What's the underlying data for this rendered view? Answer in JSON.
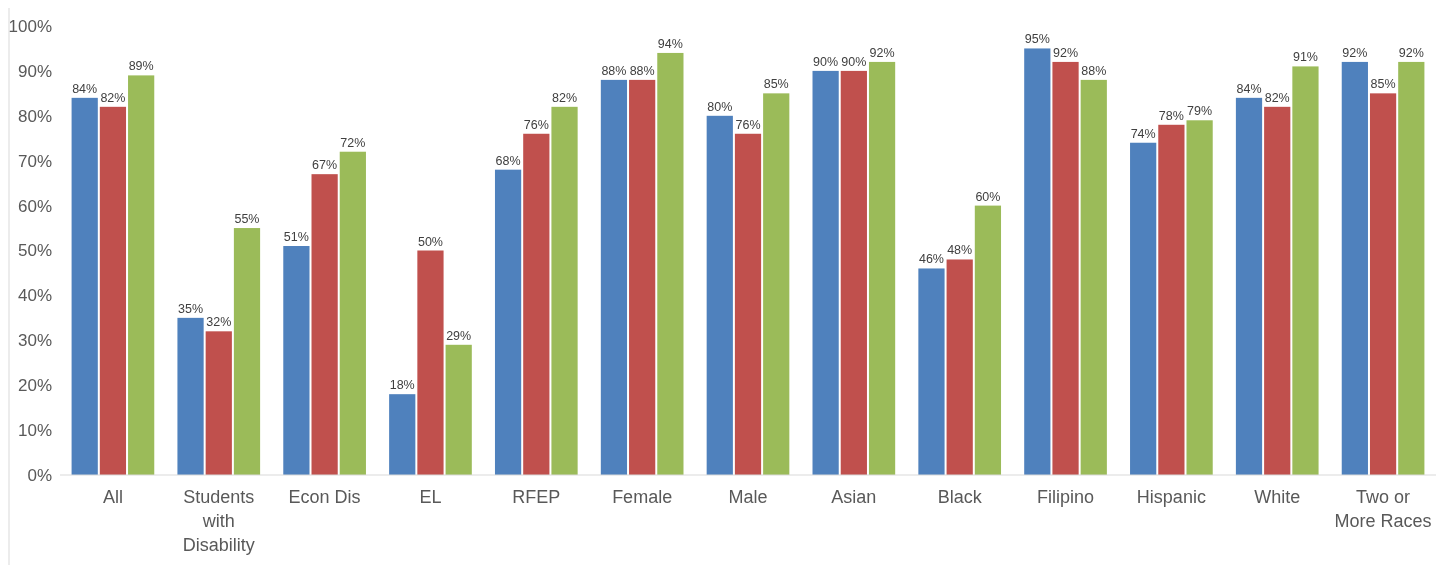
{
  "chart_data": {
    "type": "bar",
    "categories": [
      "All",
      "Students with Disability",
      "Econ Dis",
      "EL",
      "RFEP",
      "Female",
      "Male",
      "Asian",
      "Black",
      "Filipino",
      "Hispanic",
      "White",
      "Two or More Races"
    ],
    "series": [
      {
        "color": "#4f81bd",
        "values": [
          84,
          35,
          51,
          18,
          68,
          88,
          80,
          90,
          46,
          95,
          74,
          84,
          92
        ],
        "value_labels": [
          "84%",
          "35%",
          "51%",
          "18%",
          "68%",
          "88%",
          "80%",
          "90%",
          "46%",
          "95%",
          "74%",
          "84%",
          "92%"
        ]
      },
      {
        "color": "#c0504d",
        "values": [
          82,
          32,
          67,
          50,
          76,
          88,
          76,
          90,
          48,
          92,
          78,
          82,
          85
        ],
        "value_labels": [
          "82%",
          "32%",
          "67%",
          "50%",
          "76%",
          "88%",
          "76%",
          "90%",
          "48%",
          "92%",
          "78%",
          "82%",
          "85%"
        ]
      },
      {
        "color": "#9bbb59",
        "values": [
          89,
          55,
          72,
          29,
          82,
          94,
          85,
          92,
          60,
          88,
          79,
          91,
          92
        ],
        "value_labels": [
          "89%",
          "55%",
          "72%",
          "29%",
          "82%",
          "94%",
          "85%",
          "92%",
          "60%",
          "88%",
          "79%",
          "91%",
          "92%"
        ]
      }
    ],
    "ylim": [
      0,
      100
    ],
    "yticks": [
      {
        "value": 0,
        "label": "0%"
      },
      {
        "value": 10,
        "label": "10%"
      },
      {
        "value": 20,
        "label": "20%"
      },
      {
        "value": 30,
        "label": "30%"
      },
      {
        "value": 40,
        "label": "40%"
      },
      {
        "value": 50,
        "label": "50%"
      },
      {
        "value": 60,
        "label": "60%"
      },
      {
        "value": 70,
        "label": "70%"
      },
      {
        "value": 80,
        "label": "80%"
      },
      {
        "value": 90,
        "label": "90%"
      },
      {
        "value": 100,
        "label": "100%"
      }
    ],
    "grid": false
  }
}
